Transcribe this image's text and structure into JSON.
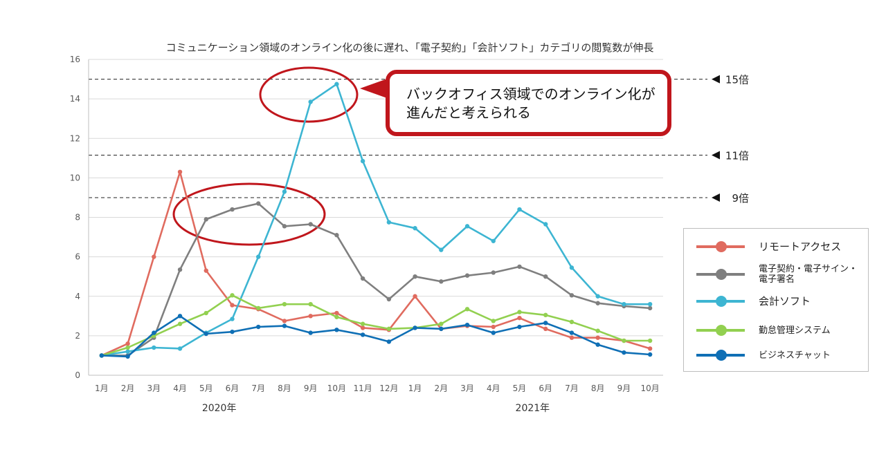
{
  "chart_data": {
    "type": "line",
    "title": "コミュニケーション領域のオンライン化の後に遅れ、「電子契約」「会計ソフト」カテゴリの閲覧数が伸長",
    "categories": [
      "1月",
      "2月",
      "3月",
      "4月",
      "5月",
      "6月",
      "7月",
      "8月",
      "9月",
      "10月",
      "11月",
      "12月",
      "1月",
      "2月",
      "3月",
      "4月",
      "5月",
      "6月",
      "7月",
      "8月",
      "9月",
      "10月"
    ],
    "year_labels": [
      {
        "label": "2020年",
        "center_index": 4.5
      },
      {
        "label": "2021年",
        "center_index": 16.5
      }
    ],
    "ylim": [
      0,
      16
    ],
    "yticks": [
      "0",
      "2",
      "4",
      "6",
      "8",
      "10",
      "12",
      "14",
      "16"
    ],
    "grid": true,
    "legend_position": "right",
    "series": [
      {
        "name": "リモートアクセス",
        "color": "#e06b5f",
        "values": [
          1.0,
          1.6,
          6.0,
          10.3,
          5.3,
          3.55,
          3.35,
          2.75,
          3.0,
          3.15,
          2.4,
          2.3,
          4.0,
          2.35,
          2.5,
          2.45,
          2.9,
          2.35,
          1.9,
          1.9,
          1.75,
          1.35
        ]
      },
      {
        "name": "電子契約・電子サイン・電子署名",
        "color": "#7f7f7f",
        "values": [
          1.0,
          1.0,
          1.9,
          5.35,
          7.9,
          8.4,
          8.7,
          7.55,
          7.65,
          7.1,
          4.9,
          3.85,
          5.0,
          4.75,
          5.05,
          5.2,
          5.5,
          5.0,
          4.05,
          3.65,
          3.5,
          3.4
        ]
      },
      {
        "name": "会計ソフト",
        "color": "#3db5d2",
        "values": [
          1.0,
          1.2,
          1.4,
          1.35,
          2.15,
          2.85,
          6.0,
          9.3,
          13.85,
          14.75,
          10.85,
          7.75,
          7.45,
          6.35,
          7.55,
          6.8,
          8.4,
          7.65,
          5.45,
          4.0,
          3.6,
          3.6
        ]
      },
      {
        "name": "勤怠管理システム",
        "color": "#92d050",
        "values": [
          1.0,
          1.4,
          2.0,
          2.6,
          3.15,
          4.05,
          3.4,
          3.6,
          3.6,
          2.95,
          2.6,
          2.35,
          2.4,
          2.6,
          3.35,
          2.75,
          3.2,
          3.05,
          2.7,
          2.25,
          1.75,
          1.75
        ]
      },
      {
        "name": "ビジネスチャット",
        "color": "#0f6fb5",
        "values": [
          1.0,
          0.95,
          2.15,
          3.0,
          2.1,
          2.2,
          2.45,
          2.5,
          2.15,
          2.3,
          2.05,
          1.7,
          2.4,
          2.35,
          2.55,
          2.15,
          2.45,
          2.65,
          2.15,
          1.55,
          1.15,
          1.05
        ]
      }
    ],
    "reference_lines": [
      {
        "value": 15,
        "label": "15倍"
      },
      {
        "value": 11.15,
        "label": "11倍"
      },
      {
        "value": 9,
        "label": "9倍"
      }
    ],
    "annotation": {
      "text_lines": [
        "バックオフィス領域でのオンライン化が",
        "進んだと考えられる"
      ],
      "border_color": "#c0161c"
    }
  }
}
